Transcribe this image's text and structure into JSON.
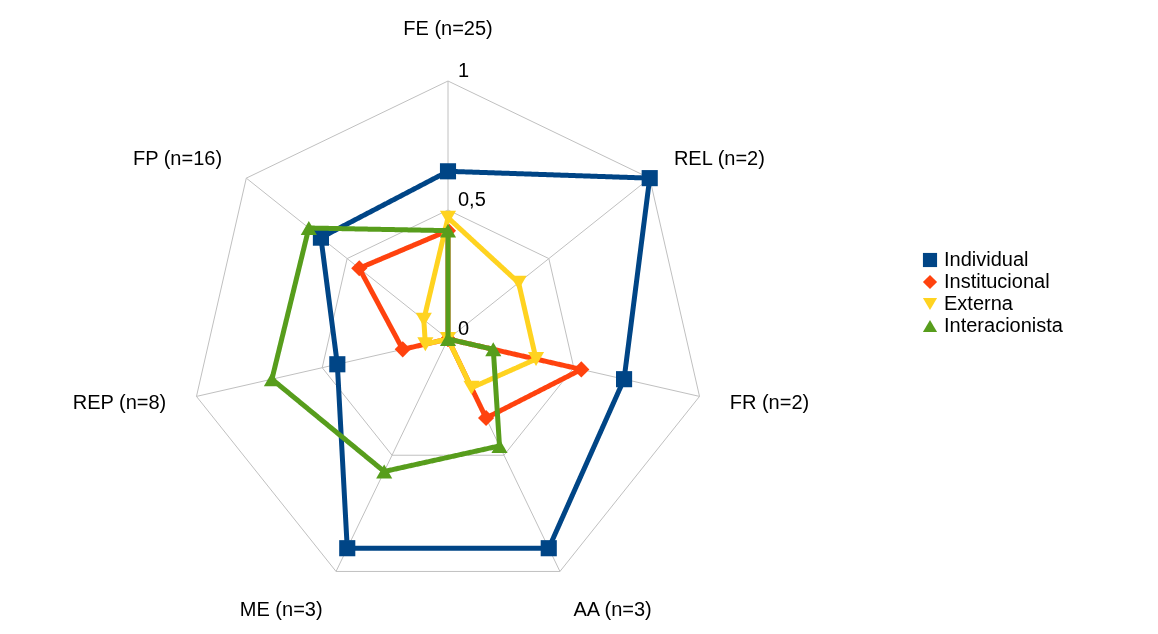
{
  "chart_data": {
    "type": "radar",
    "categories": [
      "FE (n=25)",
      "REL (n=2)",
      "FR (n=2)",
      "AA (n=3)",
      "ME (n=3)",
      "REP (n=8)",
      "FP (n=16)"
    ],
    "series": [
      {
        "name": "Individual",
        "color": "#004586",
        "marker": "square",
        "values": [
          0.65,
          1.0,
          0.7,
          0.9,
          0.9,
          0.44,
          0.63
        ]
      },
      {
        "name": "Institucional",
        "color": "#ff420e",
        "marker": "diamond",
        "values": [
          0.42,
          0,
          0.53,
          0.34,
          0,
          0.18,
          0.44
        ]
      },
      {
        "name": "Externa",
        "color": "#ffd320",
        "marker": "triangle-down",
        "values": [
          0.47,
          0.35,
          0.35,
          0.21,
          0,
          0.09,
          0.12
        ]
      },
      {
        "name": "Interacionista",
        "color": "#579d1c",
        "marker": "triangle",
        "values": [
          0.42,
          0,
          0.18,
          0.46,
          0.57,
          0.7,
          0.69
        ]
      }
    ],
    "ylim": [
      0,
      1
    ],
    "yticks": [
      {
        "value": 0,
        "label": "0"
      },
      {
        "value": 0.5,
        "label": "0,5"
      },
      {
        "value": 1,
        "label": "1"
      }
    ],
    "grid": true,
    "legend": "right",
    "line_style": "solid"
  }
}
